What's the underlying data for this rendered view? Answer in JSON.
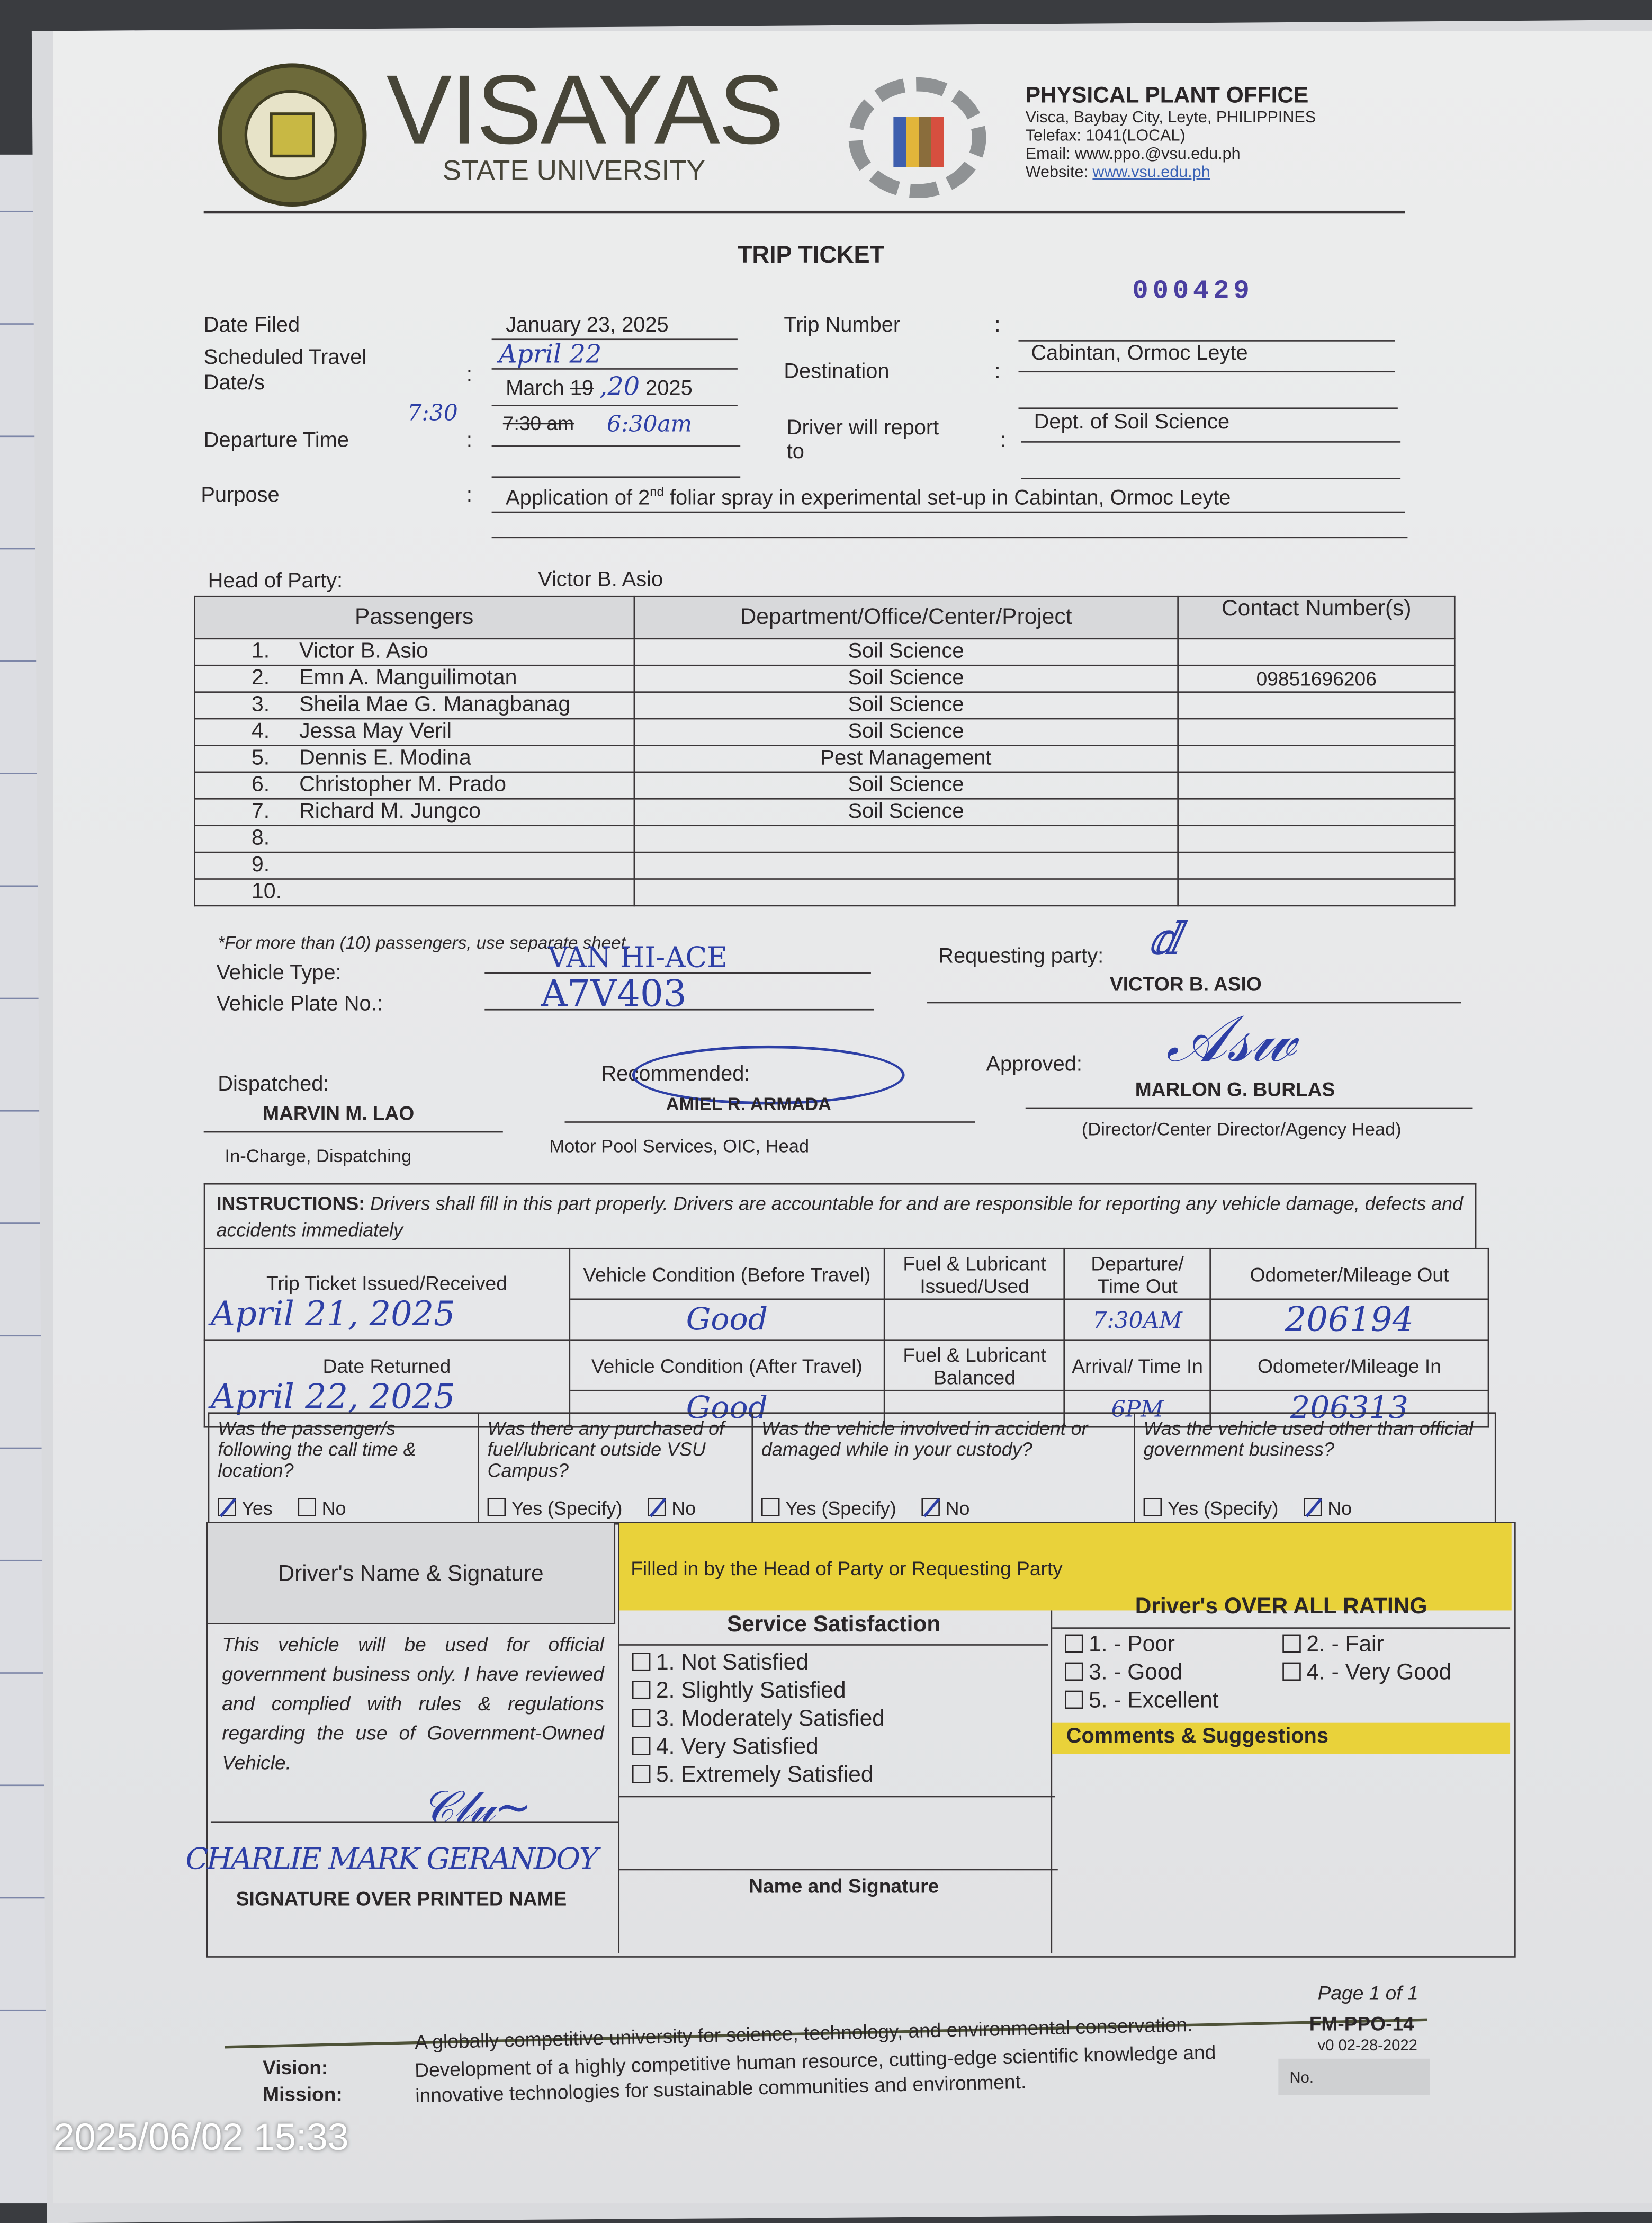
{
  "header": {
    "seal_text": "VISAYAS STATE UNIVERSITY",
    "university_name": "VISAYAS",
    "university_sub": "STATE UNIVERSITY",
    "office": {
      "title": "PHYSICAL PLANT OFFICE",
      "address": "Visca, Baybay City, Leyte, PHILIPPINES",
      "telefax": "Telefax: 1041(LOCAL)",
      "email": "Email: www.ppo.@vsu.edu.ph",
      "website_label": "Website:",
      "website": "www.vsu.edu.ph"
    }
  },
  "form": {
    "title": "TRIP TICKET",
    "serial_number": "000429",
    "fields": {
      "date_filed_label": "Date Filed",
      "date_filed": "January 23, 2025",
      "scheduled_label": "Scheduled Travel Date/s",
      "scheduled_typed_month": "March",
      "scheduled_typed_day_struck": "19",
      "scheduled_typed_year": "2025",
      "scheduled_handwritten": "April 22",
      "scheduled_handwritten_day": ",20",
      "departure_label": "Departure Time",
      "departure_typed_struck": "7:30 am",
      "departure_handwritten": "6:30am",
      "departure_margin_note": "7:30",
      "trip_number_label": "Trip Number",
      "trip_number": "",
      "destination_label": "Destination",
      "destination": "Cabintan, Ormoc Leyte",
      "driver_report_label": "Driver will report to",
      "driver_report": "Dept. of Soil Science",
      "purpose_label": "Purpose",
      "purpose_pre": "Application of 2",
      "purpose_sup": "nd",
      "purpose_post": " foliar spray in experimental set-up in Cabintan, Ormoc Leyte",
      "colon": ":"
    },
    "head_of_party_label": "Head of Party:",
    "head_of_party": "Victor B. Asio",
    "passengers_table": {
      "headers": [
        "Passengers",
        "Department/Office/Center/Project",
        "Contact Number(s)"
      ],
      "rows": [
        {
          "no": "1.",
          "name": "Victor  B. Asio",
          "dept": "Soil Science",
          "contact": ""
        },
        {
          "no": "2.",
          "name": "Emn A. Manguilimotan",
          "dept": "Soil Science",
          "contact": "09851696206"
        },
        {
          "no": "3.",
          "name": "Sheila Mae G. Managbanag",
          "dept": "Soil Science",
          "contact": ""
        },
        {
          "no": "4.",
          "name": "Jessa May Veril",
          "dept": "Soil Science",
          "contact": ""
        },
        {
          "no": "5.",
          "name": "Dennis E. Modina",
          "dept": "Pest Management",
          "contact": ""
        },
        {
          "no": "6.",
          "name": "Christopher M. Prado",
          "dept": "Soil Science",
          "contact": ""
        },
        {
          "no": "7.",
          "name": "Richard M. Jungco",
          "dept": "Soil Science",
          "contact": ""
        },
        {
          "no": "8.",
          "name": "",
          "dept": "",
          "contact": ""
        },
        {
          "no": "9.",
          "name": "",
          "dept": "",
          "contact": ""
        },
        {
          "no": "10.",
          "name": "",
          "dept": "",
          "contact": ""
        }
      ],
      "note": "*For more than (10) passengers, use separate sheet."
    },
    "vehicle": {
      "type_label": "Vehicle Type:",
      "type": "VAN HI-ACE",
      "plate_label": "Vehicle Plate No.:",
      "plate": "A7V403"
    },
    "signatories": {
      "requesting_label": "Requesting party:",
      "requesting_name": "VICTOR B. ASIO",
      "dispatched_label": "Dispatched:",
      "dispatched_name": "MARVIN M. LAO",
      "dispatched_title": "In-Charge, Dispatching",
      "recommended_label": "Recommended:",
      "recommended_name": "AMIEL R. ARMADA",
      "recommended_title": "Motor Pool Services, OIC, Head",
      "approved_label": "Approved:",
      "approved_name": "MARLON G. BURLAS",
      "approved_title": "(Director/Center Director/Agency Head)"
    },
    "instructions": {
      "label": "INSTRUCTIONS:",
      "text": "Drivers shall fill in this part properly.  Drivers are accountable for and are responsible for reporting any vehicle damage, defects and accidents immediately"
    },
    "trip_log": {
      "issued_label": "Trip Ticket Issued/Received",
      "issued": "April 21, 2025",
      "returned_label": "Date Returned",
      "returned": "April 22, 2025",
      "cond_before_label": "Vehicle Condition (Before Travel)",
      "cond_before": "Good",
      "cond_after_label": "Vehicle Condition (After Travel)",
      "cond_after": "Good",
      "fuel_issued_label": "Fuel & Lubricant Issued/Used",
      "fuel_issued": "",
      "fuel_balance_label": "Fuel & Lubricant Balanced",
      "fuel_balance": "",
      "time_out_label": "Departure/ Time Out",
      "time_out": "7:30AM",
      "time_in_label": "Arrival/ Time In",
      "time_in": "6PM",
      "odo_out_label": "Odometer/Mileage Out",
      "odo_out": "206194",
      "odo_in_label": "Odometer/Mileage In",
      "odo_in": "206313"
    },
    "questions": [
      {
        "text": "Was the passenger/s following the call time & location?",
        "options": [
          {
            "label": "Yes",
            "checked": true
          },
          {
            "label": "No",
            "checked": false
          }
        ]
      },
      {
        "text": "Was there any purchased of fuel/lubricant outside VSU Campus?",
        "options": [
          {
            "label": "Yes (Specify)",
            "checked": false
          },
          {
            "label": "No",
            "checked": true
          }
        ]
      },
      {
        "text": "Was the vehicle involved in accident or damaged while in your custody?",
        "options": [
          {
            "label": "Yes (Specify)",
            "checked": false
          },
          {
            "label": "No",
            "checked": true
          }
        ]
      },
      {
        "text": "Was the vehicle used other than official government business?",
        "options": [
          {
            "label": "Yes (Specify)",
            "checked": false
          },
          {
            "label": "No",
            "checked": true
          }
        ]
      }
    ],
    "driver": {
      "heading": "Driver's Name & Signature",
      "statement": "This vehicle will be used for official government business only.  I have reviewed and complied with rules & regulations regarding the use of Government-Owned Vehicle.",
      "printed_name": "CHARLIE MARK GERANDOY",
      "sign_label": "SIGNATURE OVER PRINTED NAME"
    },
    "head_section": {
      "banner": "Filled in by the Head of Party or Requesting Party",
      "satisfaction_heading": "Service Satisfaction",
      "satisfaction_options": [
        "1.  Not Satisfied",
        "2.  Slightly Satisfied",
        "3.  Moderately Satisfied",
        "4.  Very Satisfied",
        "5.  Extremely Satisfied"
      ],
      "name_sign_label": "Name and Signature",
      "rating_heading": "Driver's OVER ALL RATING",
      "rating_options": [
        "1. - Poor",
        "2. - Fair",
        "3. - Good",
        "4. - Very Good",
        "5. - Excellent"
      ],
      "comments_heading": "Comments & Suggestions"
    },
    "footer": {
      "vision_label": "Vision:",
      "vision": "A globally competitive university for science, technology, and environmental conservation.",
      "mission_label": "Mission:",
      "mission": "Development of a highly competitive human resource, cutting-edge scientific knowledge and innovative technologies for sustainable communities and environment.",
      "page": "Page 1 of 1",
      "form_code": "FM-PPO-14",
      "version": "v0 02-28-2022",
      "no_label": "No."
    }
  },
  "photo_timestamp": "2025/06/02 15:33",
  "colors": {
    "ink": "#2d3fa6",
    "highlight": "#e9d23a",
    "serial": "#4a3fa0"
  }
}
